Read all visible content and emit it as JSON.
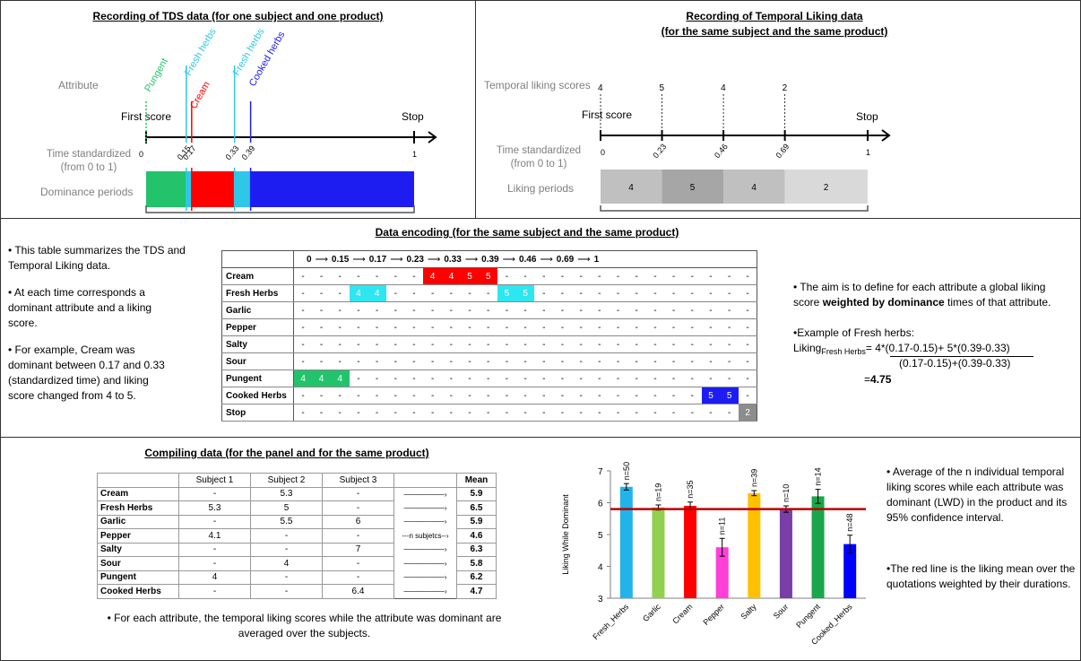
{
  "tds": {
    "title": "Recording of TDS data (for one subject and one product)",
    "attribute_label": "Attribute",
    "first_score": "First score",
    "stop": "Stop",
    "time_label_1": "Time standardized",
    "time_label_2": "(from 0 to 1)",
    "dominance_label": "Dominance periods",
    "attributes": [
      {
        "name": "Pungent",
        "color": "#22c36b",
        "at": 0
      },
      {
        "name": "Fresh herbs",
        "color": "#2fc7e8",
        "at": 0.15
      },
      {
        "name": "Cream",
        "color": "#ff0000",
        "at": 0.17
      },
      {
        "name": "Fresh herbs",
        "color": "#2fc7e8",
        "at": 0.33
      },
      {
        "name": "Cooked herbs",
        "color": "#1d1df2",
        "at": 0.39
      }
    ],
    "ticks": [
      "0",
      "0.15",
      "0.17",
      "0.33",
      "0.39",
      "1"
    ],
    "periods": [
      {
        "from": 0,
        "to": 0.15,
        "color": "#22c36b"
      },
      {
        "from": 0.15,
        "to": 0.17,
        "color": "#2fc7e8"
      },
      {
        "from": 0.17,
        "to": 0.33,
        "color": "#ff0000"
      },
      {
        "from": 0.33,
        "to": 0.39,
        "color": "#2fc7e8"
      },
      {
        "from": 0.39,
        "to": 1,
        "color": "#1d1df2"
      }
    ]
  },
  "liking": {
    "title_1": "Recording of Temporal Liking data",
    "title_2": "(for the same subject and the same product)",
    "scores_label": "Temporal liking scores",
    "first_score": "First score",
    "stop": "Stop",
    "time_label_1": "Time standardized",
    "time_label_2": "(from 0 to 1)",
    "periods_label": "Liking periods",
    "scores": [
      {
        "score": "4",
        "at": 0
      },
      {
        "score": "5",
        "at": 0.23
      },
      {
        "score": "4",
        "at": 0.46
      },
      {
        "score": "2",
        "at": 0.69
      }
    ],
    "ticks": [
      "0",
      "0.23",
      "0.46",
      "0.69",
      "1"
    ],
    "periods": [
      {
        "label": "4",
        "from": 0,
        "to": 0.23,
        "color": "#c0c0c0"
      },
      {
        "label": "5",
        "from": 0.23,
        "to": 0.46,
        "color": "#a6a6a6"
      },
      {
        "label": "4",
        "from": 0.46,
        "to": 0.69,
        "color": "#c0c0c0"
      },
      {
        "label": "2",
        "from": 0.69,
        "to": 1,
        "color": "#d9d9d9"
      }
    ]
  },
  "encoding": {
    "title": "Data encoding (for the same subject and the same product)",
    "left_text": {
      "p1": "• This table summarizes the TDS and Temporal Liking data.",
      "p2": "• At each time corresponds a dominant  attribute and a liking score.",
      "p3": "• For example, Cream was dominant between 0.17 and 0.33 (standardized time) and liking score changed from 4 to 5."
    },
    "header": [
      "0",
      "0.15",
      "0.17",
      "0.23",
      "0.33",
      "0.39",
      "0.46",
      "0.69",
      "1"
    ],
    "rows": [
      {
        "label": "Cream",
        "cells": [
          "-",
          "-",
          "-",
          "-",
          "-",
          "-",
          "-",
          "4",
          "4",
          "5",
          "5",
          "-",
          "-",
          "-",
          "-",
          "-",
          "-",
          "-",
          "-",
          "-",
          "-",
          "-",
          "-",
          "-",
          "-"
        ]
      },
      {
        "label": "Fresh Herbs",
        "cells": [
          "-",
          "-",
          "-",
          "4",
          "4",
          "-",
          "-",
          "-",
          "-",
          "-",
          "-",
          "5",
          "5",
          "-",
          "-",
          "-",
          "-",
          "-",
          "-",
          "-",
          "-",
          "-",
          "-",
          "-",
          "-"
        ]
      },
      {
        "label": "Garlic",
        "cells": [
          "-",
          "-",
          "-",
          "-",
          "-",
          "-",
          "-",
          "-",
          "-",
          "-",
          "-",
          "-",
          "-",
          "-",
          "-",
          "-",
          "-",
          "-",
          "-",
          "-",
          "-",
          "-",
          "-",
          "-",
          "-"
        ]
      },
      {
        "label": "Pepper",
        "cells": [
          "-",
          "-",
          "-",
          "-",
          "-",
          "-",
          "-",
          "-",
          "-",
          "-",
          "-",
          "-",
          "-",
          "-",
          "-",
          "-",
          "-",
          "-",
          "-",
          "-",
          "-",
          "-",
          "-",
          "-",
          "-"
        ]
      },
      {
        "label": "Salty",
        "cells": [
          "-",
          "-",
          "-",
          "-",
          "-",
          "-",
          "-",
          "-",
          "-",
          "-",
          "-",
          "-",
          "-",
          "-",
          "-",
          "-",
          "-",
          "-",
          "-",
          "-",
          "-",
          "-",
          "-",
          "-",
          "-"
        ]
      },
      {
        "label": "Sour",
        "cells": [
          "-",
          "-",
          "-",
          "-",
          "-",
          "-",
          "-",
          "-",
          "-",
          "-",
          "-",
          "-",
          "-",
          "-",
          "-",
          "-",
          "-",
          "-",
          "-",
          "-",
          "-",
          "-",
          "-",
          "-",
          "-"
        ]
      },
      {
        "label": "Pungent",
        "cells": [
          "4",
          "4",
          "4",
          "-",
          "-",
          "-",
          "-",
          "-",
          "-",
          "-",
          "-",
          "-",
          "-",
          "-",
          "-",
          "-",
          "-",
          "-",
          "-",
          "-",
          "-",
          "-",
          "-",
          "-",
          "-"
        ]
      },
      {
        "label": "Cooked Herbs",
        "cells": [
          "-",
          "-",
          "-",
          "-",
          "-",
          "-",
          "-",
          "-",
          "-",
          "-",
          "-",
          "-",
          "-",
          "-",
          "-",
          "-",
          "-",
          "-",
          "-",
          "-",
          "-",
          "-",
          "5",
          "5",
          "-"
        ]
      },
      {
        "label": "Stop",
        "cells": [
          "-",
          "-",
          "-",
          "-",
          "-",
          "-",
          "-",
          "-",
          "-",
          "-",
          "-",
          "-",
          "-",
          "-",
          "-",
          "-",
          "-",
          "-",
          "-",
          "-",
          "-",
          "-",
          "-",
          "-",
          "2"
        ]
      }
    ],
    "right_text": {
      "p1_a": "• The aim is to define for each attribute a global liking score ",
      "p1_b": "weighted by dominance",
      "p1_c": " times of  that attribute.",
      "p2": "•Example of Fresh herbs:",
      "liking": "Liking",
      "sub": "Fresh Herbs",
      "num": "= 4*(0.17-0.15)+ 5*(0.39-0.33)",
      "den": "(0.17-0.15)+(0.39-0.33)",
      "res_eq": "=",
      "res": "4.75"
    }
  },
  "compiling": {
    "title": "Compiling data (for the panel and for the same product)",
    "columns": [
      "Subject 1",
      "Subject 2",
      "Subject 3",
      "",
      "Mean"
    ],
    "rows": [
      {
        "label": "Cream",
        "s1": "-",
        "s2": "5.3",
        "s3": "-",
        "arrow": "",
        "mean": "5.9"
      },
      {
        "label": "Fresh Herbs",
        "s1": "5.3",
        "s2": "5",
        "s3": "-",
        "arrow": "",
        "mean": "6.5"
      },
      {
        "label": "Garlic",
        "s1": "-",
        "s2": "5.5",
        "s3": "6",
        "arrow": "",
        "mean": "5.9"
      },
      {
        "label": "Pepper",
        "s1": "4.1",
        "s2": "-",
        "s3": "-",
        "arrow": "---n subjetcs--",
        "mean": "4.6"
      },
      {
        "label": "Salty",
        "s1": "-",
        "s2": "-",
        "s3": "7",
        "arrow": "",
        "mean": "6.3"
      },
      {
        "label": "Sour",
        "s1": "-",
        "s2": "4",
        "s3": "-",
        "arrow": "",
        "mean": "5.8"
      },
      {
        "label": "Pungent",
        "s1": "4",
        "s2": "-",
        "s3": "-",
        "arrow": "",
        "mean": "6.2"
      },
      {
        "label": "Cooked Herbs",
        "s1": "-",
        "s2": "-",
        "s3": "6.4",
        "arrow": "",
        "mean": "4.7"
      }
    ],
    "note": "• For each attribute, the temporal liking scores while the attribute was dominant are averaged over the subjects.",
    "right_text_1": "• Average of the n individual temporal liking scores while each attribute was dominant (LWD) in the product and its 95% confidence interval.",
    "right_text_2": "•The red line is the liking mean over the quotations weighted by their durations."
  },
  "chart_data": {
    "type": "bar",
    "ylabel": "Liking While Dominant",
    "ylim": [
      3,
      7
    ],
    "yticks": [
      "3",
      "4",
      "5",
      "6",
      "7"
    ],
    "categories": [
      "Fresh_Herbs",
      "Garlic",
      "Cream",
      "Pepper",
      "Salty",
      "Sour",
      "Pungent",
      "Cooked_Herbs"
    ],
    "values": [
      6.5,
      5.85,
      5.9,
      4.6,
      6.3,
      5.8,
      6.2,
      4.7
    ],
    "errors": [
      0.1,
      0.08,
      0.12,
      0.28,
      0.08,
      0.1,
      0.22,
      0.28
    ],
    "n_labels": [
      "n=50",
      "n=19",
      "n=35",
      "n=11",
      "n=39",
      "n=10",
      "n=14",
      "n=48"
    ],
    "colors": [
      "#22b3ea",
      "#92d050",
      "#ff0000",
      "#ff3fd8",
      "#ffc000",
      "#7a3ea8",
      "#1aa64a",
      "#0000ff"
    ],
    "mean_line": 5.8,
    "mean_line_color": "#c00000"
  }
}
